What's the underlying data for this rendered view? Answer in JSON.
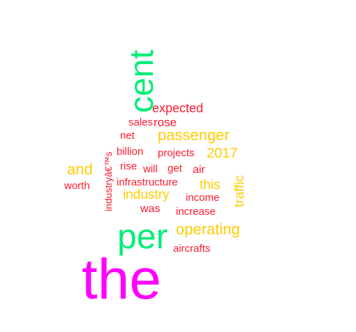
{
  "colors": {
    "largest": "#ff00ff",
    "large": "#00ee77",
    "medium": "#ffcc00",
    "small": "#ff1a2e"
  },
  "words": [
    {
      "text": "the",
      "color_key": "largest"
    },
    {
      "text": "per",
      "color_key": "large"
    },
    {
      "text": "cent",
      "color_key": "large"
    },
    {
      "text": "operating",
      "color_key": "medium"
    },
    {
      "text": "passenger",
      "color_key": "medium"
    },
    {
      "text": "2017",
      "color_key": "medium"
    },
    {
      "text": "and",
      "color_key": "medium"
    },
    {
      "text": "industry",
      "color_key": "medium"
    },
    {
      "text": "this",
      "color_key": "medium"
    },
    {
      "text": "traffic",
      "color_key": "medium"
    },
    {
      "text": "expected",
      "color_key": "small"
    },
    {
      "text": "rose",
      "color_key": "small"
    },
    {
      "text": "sales",
      "color_key": "small"
    },
    {
      "text": "net",
      "color_key": "small"
    },
    {
      "text": "billion",
      "color_key": "small"
    },
    {
      "text": "projects",
      "color_key": "small"
    },
    {
      "text": "rise",
      "color_key": "small"
    },
    {
      "text": "will",
      "color_key": "small"
    },
    {
      "text": "get",
      "color_key": "small"
    },
    {
      "text": "air",
      "color_key": "small"
    },
    {
      "text": "worth",
      "color_key": "small"
    },
    {
      "text": "infrastructure",
      "color_key": "small"
    },
    {
      "text": "income",
      "color_key": "small"
    },
    {
      "text": "was",
      "color_key": "small"
    },
    {
      "text": "increase",
      "color_key": "small"
    },
    {
      "text": "aircrafts",
      "color_key": "small"
    },
    {
      "text": "industryâ€™s",
      "color_key": "small"
    }
  ]
}
